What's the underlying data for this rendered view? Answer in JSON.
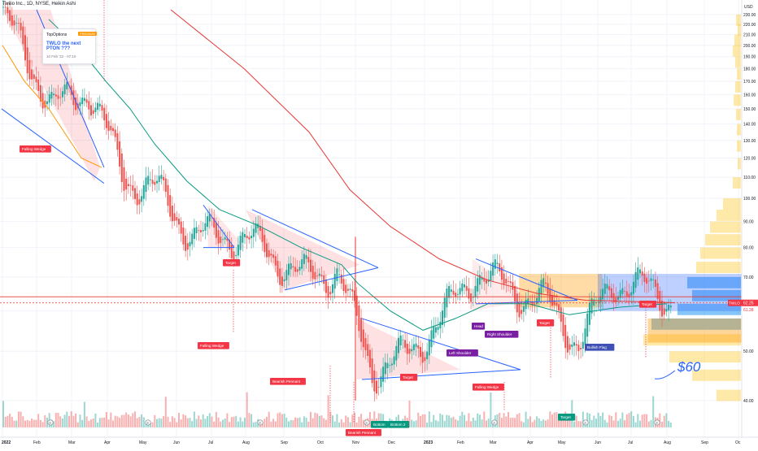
{
  "header": {
    "symbol_line": "Twilio Inc., 1D, NYSE, Heikin Ashi"
  },
  "idea_popup": {
    "author": "TopOptions",
    "badge": "PREMIUM",
    "title": "TWLO the next PTON ???",
    "date": "10 Feb '22 - 07:10"
  },
  "price_axis": {
    "currency": "USD",
    "ticks": [
      "230.00",
      "220.00",
      "210.00",
      "200.00",
      "190.00",
      "180.00",
      "170.00",
      "160.00",
      "150.00",
      "140.00",
      "130.00",
      "120.00",
      "110.00",
      "100.00",
      "90.00",
      "80.00",
      "70.00",
      "60.00",
      "50.00",
      "40.00"
    ],
    "last_price_label": "TWLO",
    "last_price": "62.25",
    "sub_price": "61.28"
  },
  "time_axis": {
    "labels": [
      "2022",
      "Feb",
      "Mar",
      "Apr",
      "May",
      "Jun",
      "Jul",
      "Aug",
      "Sep",
      "Oct",
      "Nov",
      "Dec",
      "2023",
      "Feb",
      "Mar",
      "Apr",
      "May",
      "Jun",
      "Jul",
      "Aug",
      "Sep",
      "Oc"
    ]
  },
  "annotations": {
    "falling_wedge_1": "Falling Wedge",
    "target_1": "Target",
    "falling_wedge_2": "Falling Wedge",
    "bearish_pennant_1": "Bearish Pennant",
    "target_2": "Target",
    "bearish_pennant_2": "Bearish Pennant",
    "bottom_1": "Bottom",
    "bottom_2": "Bottom 2",
    "head": "Head",
    "left_shoulder": "Left Shoulder",
    "right_shoulder": "Right Shoulder",
    "falling_wedge_3": "Falling Wedge",
    "target_3": "Target",
    "target_4": "Target",
    "bullish_flag": "Bullish Flag",
    "target_5": "Target",
    "handwritten_price": "$60",
    "earnings_marker": "E"
  },
  "colors": {
    "up": "#26a69a",
    "down": "#ef5350",
    "ma_short": "#ff9800",
    "ma_mid": "#089981",
    "ma_long": "#e53935",
    "pattern_line": "#2962ff",
    "red_label": "#f23645",
    "purple_label": "#7b1fa2",
    "blue_label": "#3f51b5",
    "green_label": "#089981"
  },
  "chart_data": {
    "type": "candlestick",
    "chart_style": "Heikin Ashi",
    "xlabel": "",
    "ylabel": "",
    "ylim": [
      37,
      235
    ],
    "scale": "log",
    "grid": true,
    "candles_monthly": [
      {
        "x": "2022-01",
        "close": 205
      },
      {
        "x": "2022-02",
        "close": 150
      },
      {
        "x": "2022-03",
        "close": 165
      },
      {
        "x": "2022-04",
        "close": 110
      },
      {
        "x": "2022-05",
        "close": 103
      },
      {
        "x": "2022-06",
        "close": 84
      },
      {
        "x": "2022-07",
        "close": 85
      },
      {
        "x": "2022-08",
        "close": 80
      },
      {
        "x": "2022-09",
        "close": 70
      },
      {
        "x": "2022-10",
        "close": 72
      },
      {
        "x": "2022-11",
        "close": 46
      },
      {
        "x": "2022-12",
        "close": 49
      },
      {
        "x": "2023-01",
        "close": 58
      },
      {
        "x": "2023-02",
        "close": 72
      },
      {
        "x": "2023-03",
        "close": 66
      },
      {
        "x": "2023-04",
        "close": 63
      },
      {
        "x": "2023-05",
        "close": 52
      },
      {
        "x": "2023-06",
        "close": 69
      },
      {
        "x": "2023-07",
        "close": 66
      },
      {
        "x": "2023-08",
        "close": 62
      }
    ],
    "horizontal_lines": [
      64.0,
      62.25
    ],
    "handwritten_target": 60
  }
}
